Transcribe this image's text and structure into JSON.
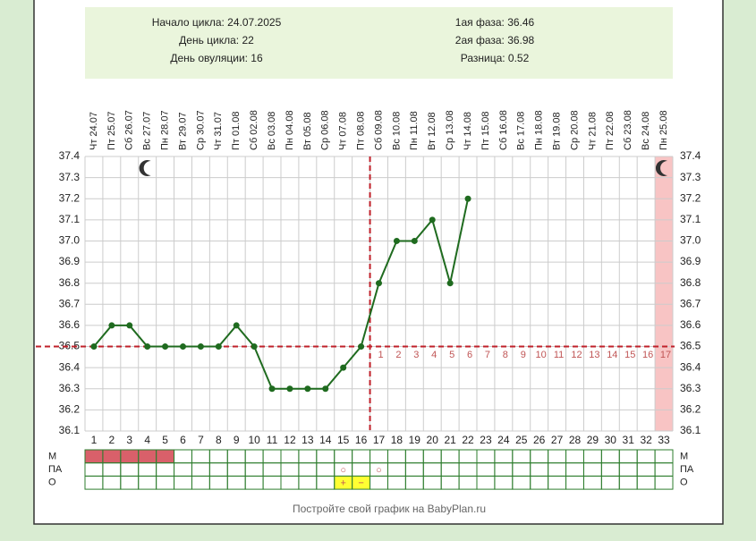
{
  "header": {
    "left": [
      "Начало цикла: 24.07.2025",
      "День цикла: 22",
      "День овуляции: 16"
    ],
    "right": [
      "1ая фаза: 36.46",
      "2ая фаза: 36.98",
      "Разница: 0.52"
    ]
  },
  "chart_data": {
    "type": "line",
    "color": "#1f6b1f",
    "categories": [
      "Чт 24.07",
      "Пт 25.07",
      "Сб 26.07",
      "Вс 27.07",
      "Пн 28.07",
      "Вт 29.07",
      "Ср 30.07",
      "Чт 31.07",
      "Пт 01.08",
      "Сб 02.08",
      "Вс 03.08",
      "Пн 04.08",
      "Вт 05.08",
      "Ср 06.08",
      "Чт 07.08",
      "Пт 08.08",
      "Сб 09.08",
      "Вс 10.08",
      "Пн 11.08",
      "Вт 12.08",
      "Ср 13.08",
      "Чт 14.08",
      "Пт 15.08",
      "Сб 16.08",
      "Вс 17.08",
      "Пн 18.08",
      "Вт 19.08",
      "Ср 20.08",
      "Чт 21.08",
      "Пт 22.08",
      "Сб 23.08",
      "Вс 24.08",
      "Пн 25.08"
    ],
    "x": [
      1,
      2,
      3,
      4,
      5,
      6,
      7,
      8,
      9,
      10,
      11,
      12,
      13,
      14,
      15,
      16,
      17,
      18,
      19,
      20,
      21,
      22,
      23,
      24,
      25,
      26,
      27,
      28,
      29,
      30,
      31,
      32,
      33
    ],
    "values": [
      36.5,
      36.6,
      36.6,
      36.5,
      36.5,
      36.5,
      36.5,
      36.5,
      36.6,
      36.5,
      36.3,
      36.3,
      36.3,
      36.3,
      36.4,
      36.5,
      36.8,
      37.0,
      37.0,
      37.1,
      36.8,
      37.2,
      null,
      null,
      null,
      null,
      null,
      null,
      null,
      null,
      null,
      null,
      null
    ],
    "luteal_days": [
      null,
      null,
      null,
      null,
      null,
      null,
      null,
      null,
      null,
      null,
      null,
      null,
      null,
      null,
      null,
      null,
      1,
      2,
      3,
      4,
      5,
      6,
      7,
      8,
      9,
      10,
      11,
      12,
      13,
      14,
      15,
      16,
      17
    ],
    "ylim": [
      36.1,
      37.4
    ],
    "yticks": [
      36.1,
      36.2,
      36.3,
      36.4,
      36.5,
      36.6,
      36.7,
      36.8,
      36.9,
      {
        "value": 37,
        "label": "37.0"
      },
      37.1,
      37.2,
      37.3,
      37.4
    ],
    "grid": true,
    "cover_line": 36.5,
    "ovulation_day": 16,
    "highlight_days": [
      33
    ],
    "moon_days": [
      4,
      33
    ],
    "rows": [
      {
        "label": "М",
        "color": "#d9606a",
        "days": [
          1,
          2,
          3,
          4,
          5
        ],
        "symbols": []
      },
      {
        "label": "ПА",
        "color": null,
        "days": [],
        "symbols": [
          {
            "day": 15,
            "text": "○"
          },
          {
            "day": 17,
            "text": "○"
          }
        ]
      },
      {
        "label": "О",
        "color": "#ffff33",
        "days": [
          15,
          16
        ],
        "symbols": [
          {
            "day": 15,
            "text": "+"
          },
          {
            "day": 16,
            "text": "−"
          }
        ]
      }
    ]
  },
  "footer": "Постройте свой график на BabyPlan.ru"
}
